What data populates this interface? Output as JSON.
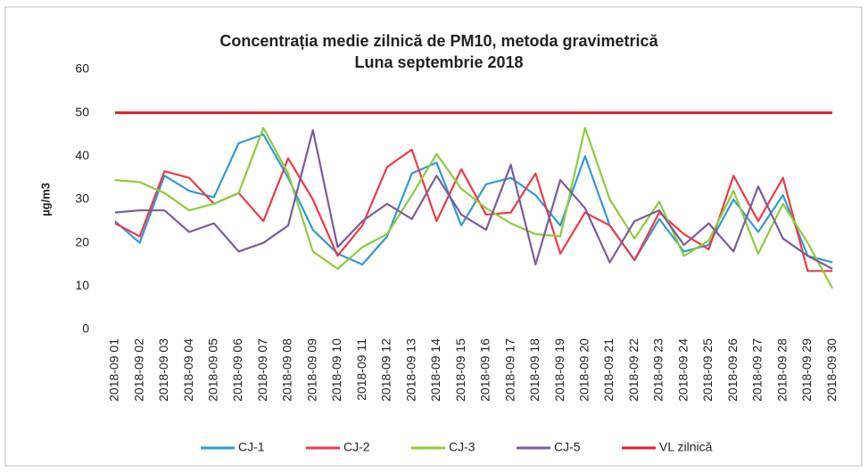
{
  "chart_data": {
    "type": "line",
    "title": "Concentrația medie zilnică de PM10, metoda gravimetrică",
    "subtitle": "Luna septembrie 2018",
    "y_label": "µg/m3",
    "categories": [
      "2018-09 01",
      "2018-09 02",
      "2018-09 03",
      "2018-09 04",
      "2018-09 05",
      "2018-09 06",
      "2018-09 07",
      "2018-09 08",
      "2018-09 09",
      "2018-09 10",
      "2018-09 11",
      "2018-09 12",
      "2018-09 13",
      "2018-09 14",
      "2018-09 15",
      "2018-09 16",
      "2018-09 17",
      "2018-09 18",
      "2018-09 19",
      "2018-09 20",
      "2018-09 21",
      "2018-09 22",
      "2018-09 23",
      "2018-09 24",
      "2018-09 25",
      "2018-09 26",
      "2018-09 27",
      "2018-09 28",
      "2018-09 29",
      "2018-09 30"
    ],
    "series": [
      {
        "name": "CJ-1",
        "color": "#2f9ad8",
        "values": [
          25,
          20,
          35.5,
          32,
          30.5,
          43,
          45,
          35,
          23,
          17.5,
          15,
          21.5,
          36,
          38.5,
          24,
          33.5,
          35,
          31,
          24,
          40,
          24,
          16,
          25.5,
          18,
          19.5,
          30,
          22.5,
          31,
          17,
          15.5
        ]
      },
      {
        "name": "CJ-2",
        "color": "#ec3b47",
        "values": [
          24.5,
          21.5,
          36.5,
          35,
          29,
          31.5,
          25,
          39.5,
          30,
          17,
          24,
          37.5,
          41.5,
          25,
          37,
          26.5,
          27,
          36,
          17.5,
          27,
          24,
          16,
          27,
          22,
          18.5,
          35.5,
          25,
          35,
          13.5,
          13.5
        ]
      },
      {
        "name": "CJ-3",
        "color": "#8dcc3b",
        "values": [
          34.5,
          34,
          31.5,
          27.5,
          29,
          31.5,
          46.5,
          36,
          18,
          14,
          19,
          22,
          31,
          40.5,
          32.5,
          28,
          24.5,
          22,
          21.5,
          46.5,
          30,
          21,
          29.5,
          17,
          20.5,
          32,
          17.5,
          29,
          20,
          9.5
        ]
      },
      {
        "name": "CJ-5",
        "color": "#7c5c9c",
        "values": [
          27,
          27.5,
          27.5,
          22.5,
          24.5,
          18,
          20,
          24,
          46,
          19,
          25,
          29,
          25.5,
          35.5,
          26.5,
          23,
          38,
          15,
          34.5,
          28,
          15.5,
          25,
          27.5,
          19.5,
          24.5,
          18,
          33,
          21,
          17,
          14
        ]
      },
      {
        "name": "VL zilnică",
        "color": "#e11f2d",
        "values": [
          50,
          50,
          50,
          50,
          50,
          50,
          50,
          50,
          50,
          50,
          50,
          50,
          50,
          50,
          50,
          50,
          50,
          50,
          50,
          50,
          50,
          50,
          50,
          50,
          50,
          50,
          50,
          50,
          50,
          50
        ]
      }
    ],
    "ylim": [
      0,
      60
    ],
    "yticks": [
      0,
      10,
      20,
      30,
      40,
      50,
      60
    ],
    "grid": false
  }
}
